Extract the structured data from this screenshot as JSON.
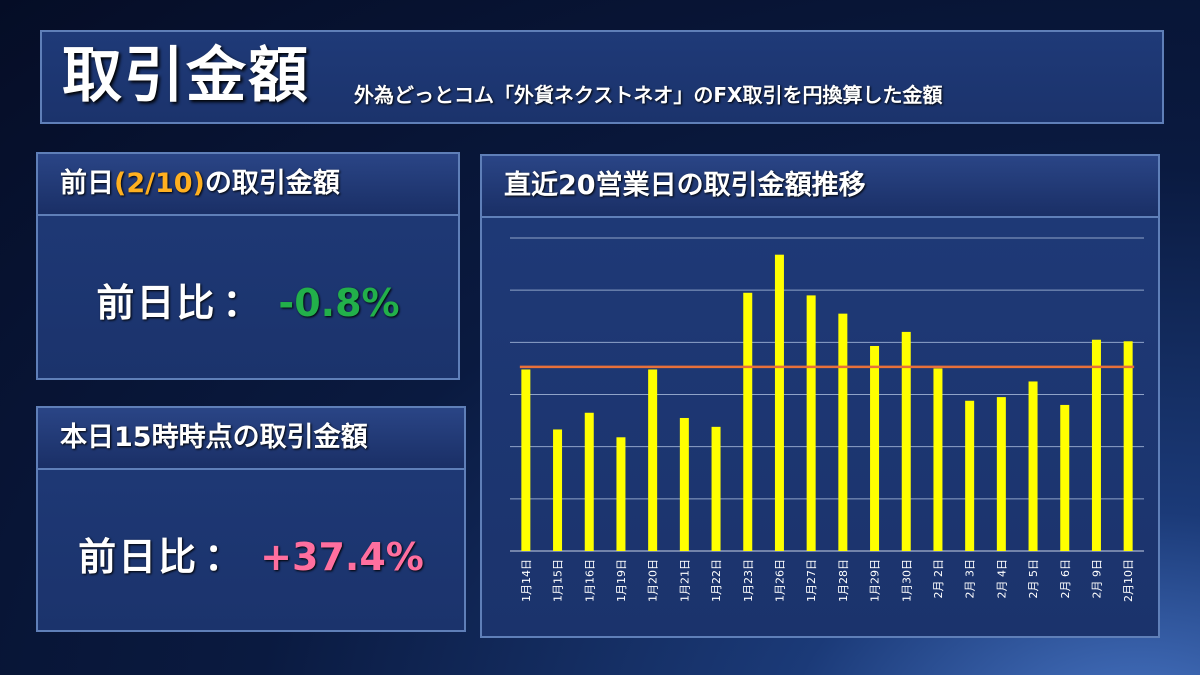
{
  "header": {
    "title": "取引金額",
    "subtitle": "外為どっとコム「外貨ネクストネオ」のFX取引を円換算した金額"
  },
  "prev_card": {
    "title_pre": "前日",
    "title_date": "(2/10)",
    "title_post": "の取引金額",
    "ratio_label": "前日比",
    "separator": "：",
    "value": "-0.8%"
  },
  "today_card": {
    "title": "本日15時時点の取引金額",
    "ratio_label": "前日比",
    "separator": "：",
    "value": "+37.4%"
  },
  "chart_card": {
    "title": "直近20営業日の取引金額推移"
  },
  "colors": {
    "bar": "#ffff00",
    "average_line": "#e8703a",
    "negative": "#22b04a",
    "positive": "#ff6f9f",
    "highlight": "#ffb020"
  },
  "chart_data": {
    "type": "bar",
    "categories": [
      "1月14日",
      "1月15日",
      "1月16日",
      "1月19日",
      "1月20日",
      "1月21日",
      "1月22日",
      "1月23日",
      "1月26日",
      "1月27日",
      "1月28日",
      "1月29日",
      "1月30日",
      "2月 2日",
      "2月 3日",
      "2月 4日",
      "2月 5日",
      "2月 6日",
      "2月 9日",
      "2月10日"
    ],
    "values": [
      3.48,
      2.33,
      2.65,
      2.18,
      3.48,
      2.55,
      2.38,
      4.95,
      5.68,
      4.9,
      4.55,
      3.93,
      4.2,
      3.5,
      2.88,
      2.95,
      3.25,
      2.8,
      4.05,
      4.02
    ],
    "average": 3.53,
    "ylim": [
      0,
      6
    ],
    "yticks": [
      0,
      1,
      2,
      3,
      4,
      5,
      6
    ],
    "grid": true,
    "title": "直近20営業日の取引金額推移",
    "xlabel": "",
    "ylabel": ""
  }
}
